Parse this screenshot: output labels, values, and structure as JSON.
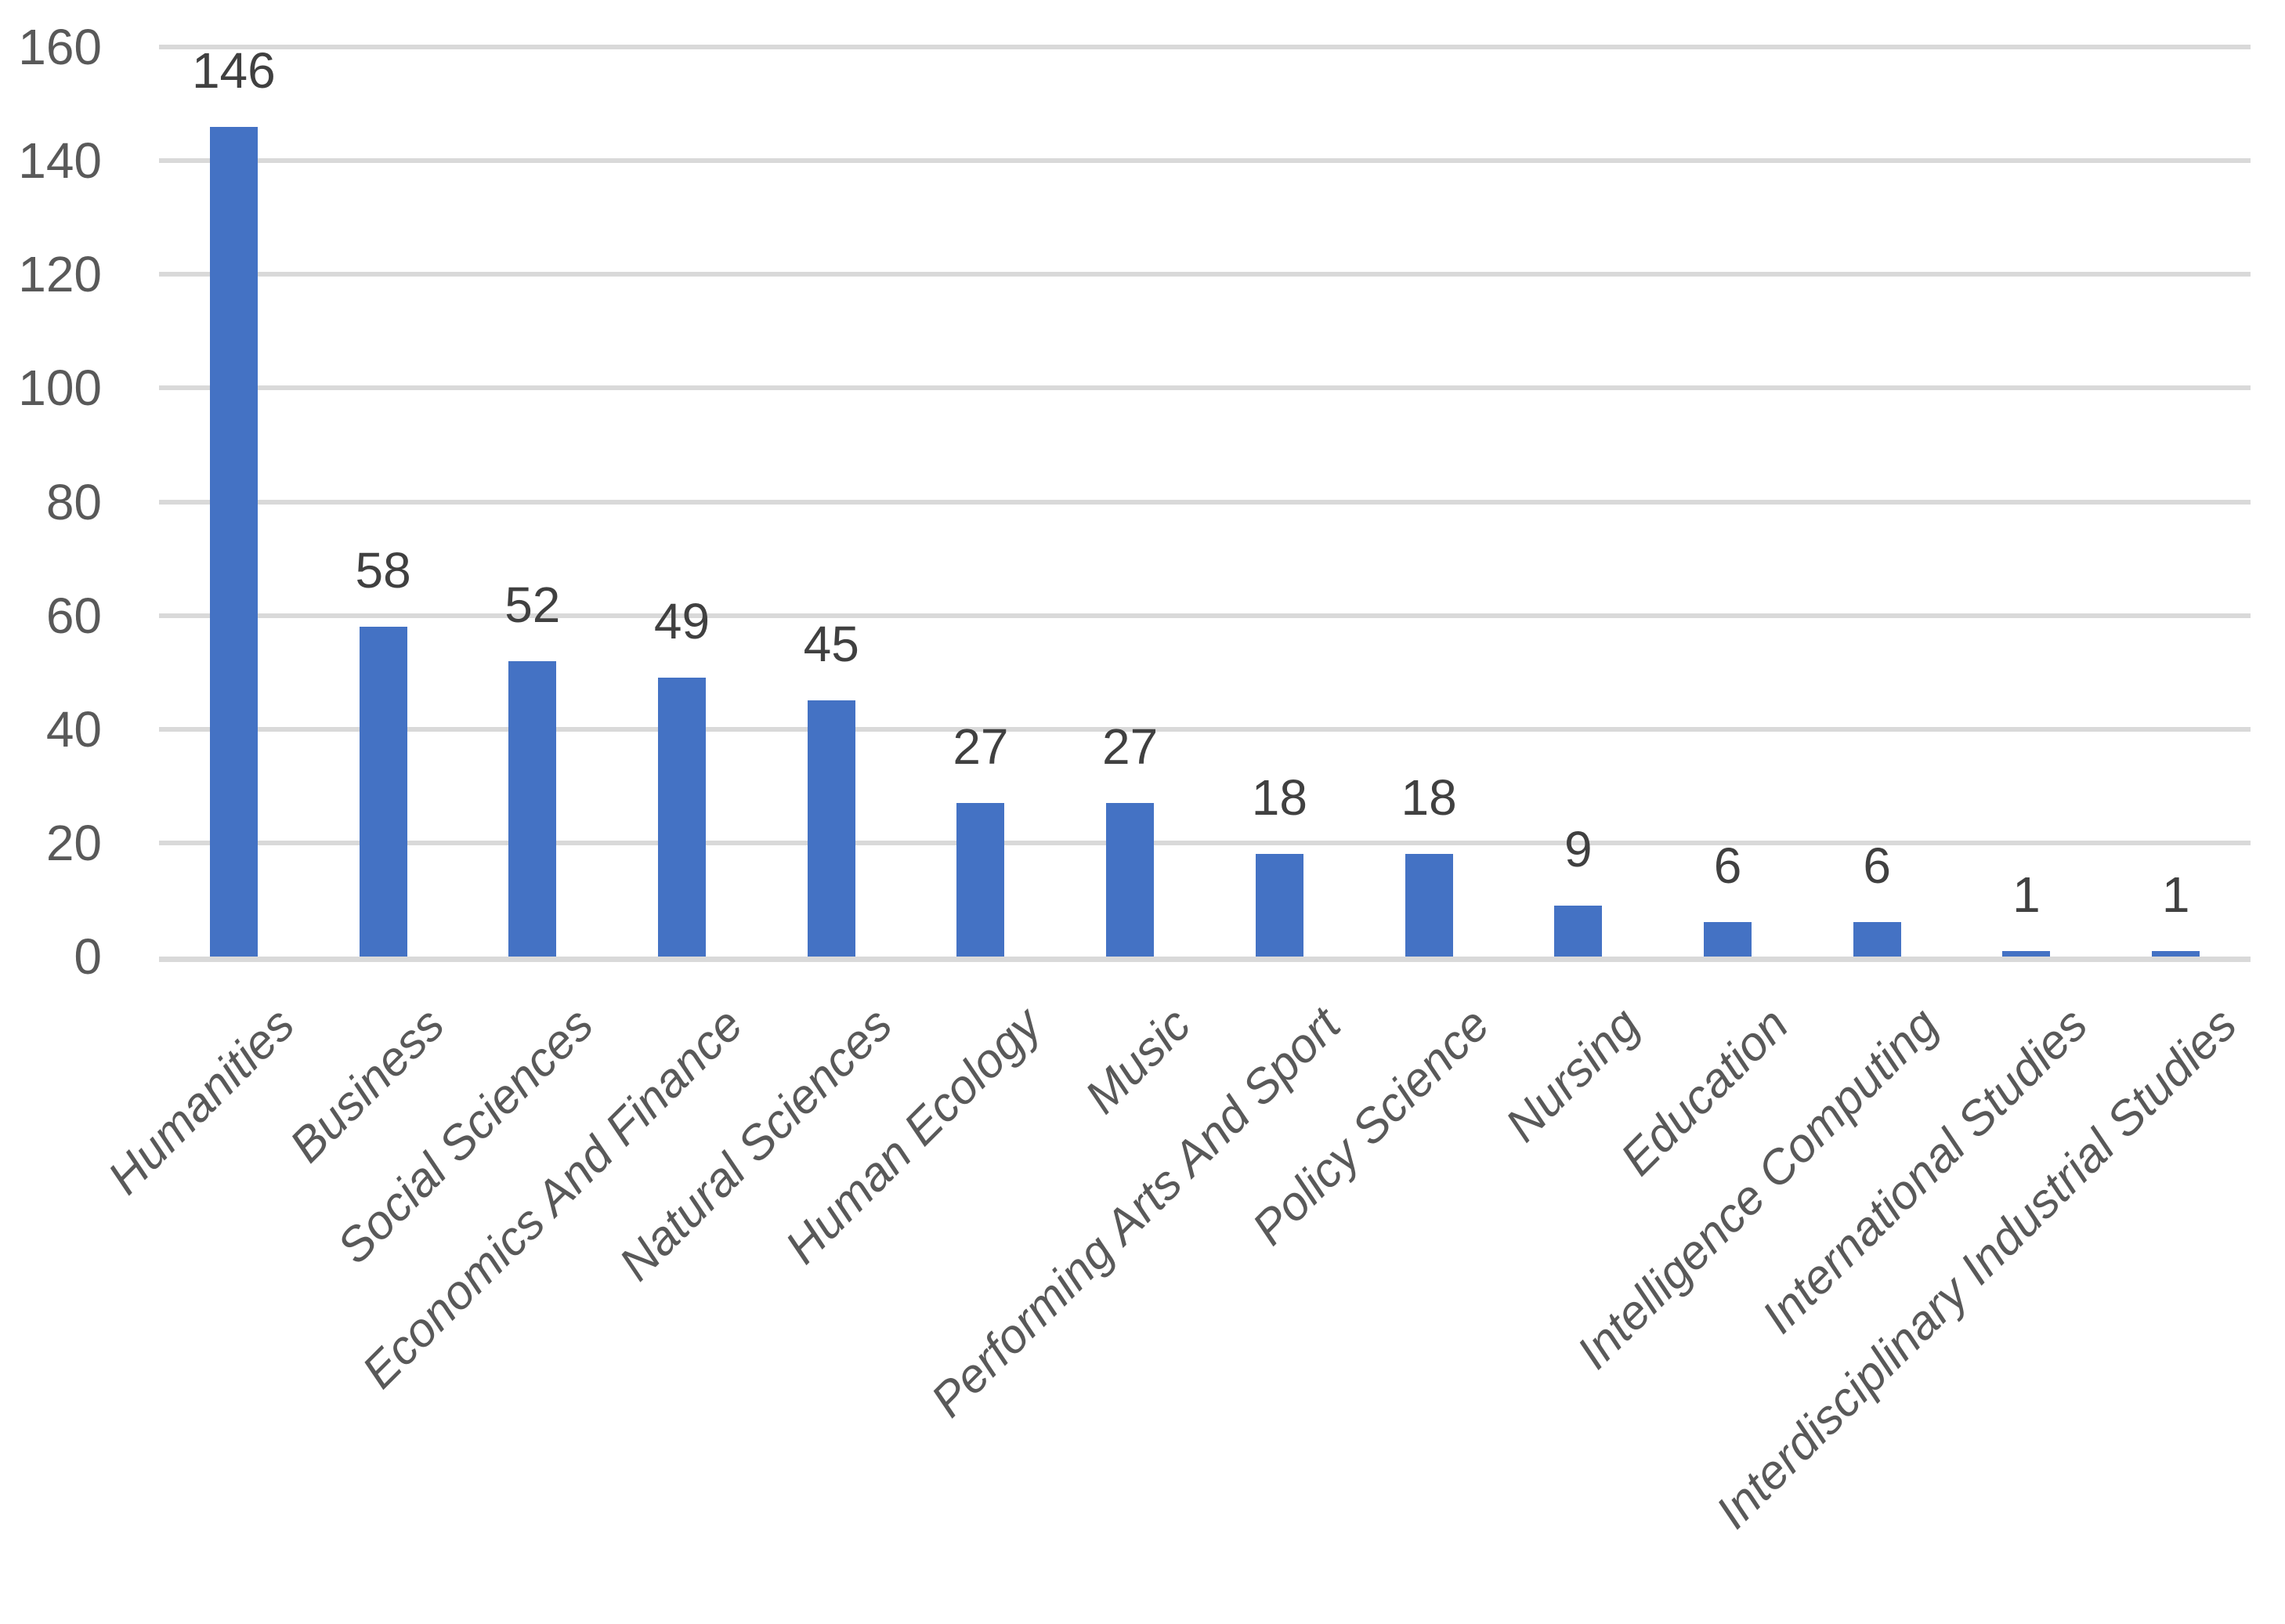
{
  "chart_data": {
    "type": "bar",
    "title": "",
    "categories": [
      "Humanities",
      "Business",
      "Social Sciences",
      "Economics And Finance",
      "Natural Sciences",
      "Human Ecology",
      "Music",
      "Performing Arts And Sport",
      "Policy Science",
      "Nursing",
      "Education",
      "Intelligence Computing",
      "International Studies",
      "Interdisciplinary Industrial Studies"
    ],
    "values": [
      146,
      58,
      52,
      49,
      45,
      27,
      27,
      18,
      18,
      9,
      6,
      6,
      1,
      1
    ],
    "value_labels_shown": true,
    "xlabel": "",
    "ylabel": "",
    "ylim": [
      0,
      160
    ],
    "yticks": [
      0,
      20,
      40,
      60,
      80,
      100,
      120,
      140,
      160
    ],
    "grid": "horizontal",
    "legend": "none",
    "x_tick_style": "italic, rotated 45 degrees",
    "colors": {
      "bar": "#4472c4",
      "gridline": "#d9d9d9",
      "axis_line": "#d9d9d9",
      "axis_label": "#595959",
      "value_label": "#404040",
      "background": "#ffffff"
    }
  }
}
